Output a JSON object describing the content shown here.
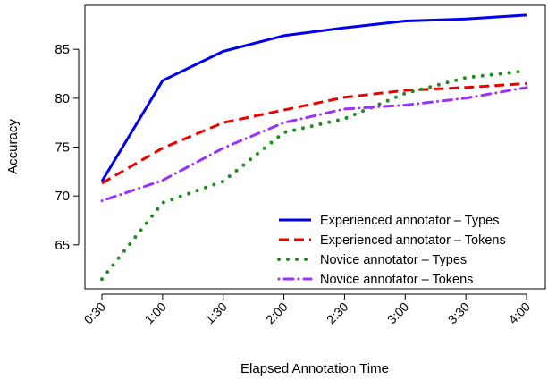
{
  "chart_data": {
    "type": "line",
    "xlabel": "Elapsed Annotation Time",
    "ylabel": "Accuracy",
    "x": [
      "0:30",
      "1:00",
      "1:30",
      "2:00",
      "2:30",
      "3:00",
      "3:30",
      "4:00"
    ],
    "ylim": [
      60.5,
      89.5
    ],
    "yticks": [
      65,
      70,
      75,
      80,
      85
    ],
    "grid": false,
    "legend_position": "bottom-right",
    "series": [
      {
        "name": "Experienced annotator – Types",
        "color": "#0000ee",
        "dash": "solid",
        "values": [
          71.5,
          81.8,
          84.8,
          86.4,
          87.2,
          87.9,
          88.1,
          88.5
        ]
      },
      {
        "name": "Experienced annotator – Tokens",
        "color": "#ee0000",
        "dash": "dashed",
        "values": [
          71.3,
          74.9,
          77.5,
          78.8,
          80.1,
          80.8,
          81.1,
          81.5
        ]
      },
      {
        "name": "Novice annotator – Types",
        "color": "#228b22",
        "dash": "dotted",
        "values": [
          61.5,
          69.3,
          71.5,
          76.5,
          77.9,
          80.5,
          82.1,
          82.8
        ]
      },
      {
        "name": "Novice annotator – Tokens",
        "color": "#9b30ff",
        "dash": "dotdash",
        "values": [
          69.5,
          71.6,
          74.9,
          77.5,
          78.9,
          79.3,
          80.0,
          81.1
        ]
      }
    ]
  }
}
